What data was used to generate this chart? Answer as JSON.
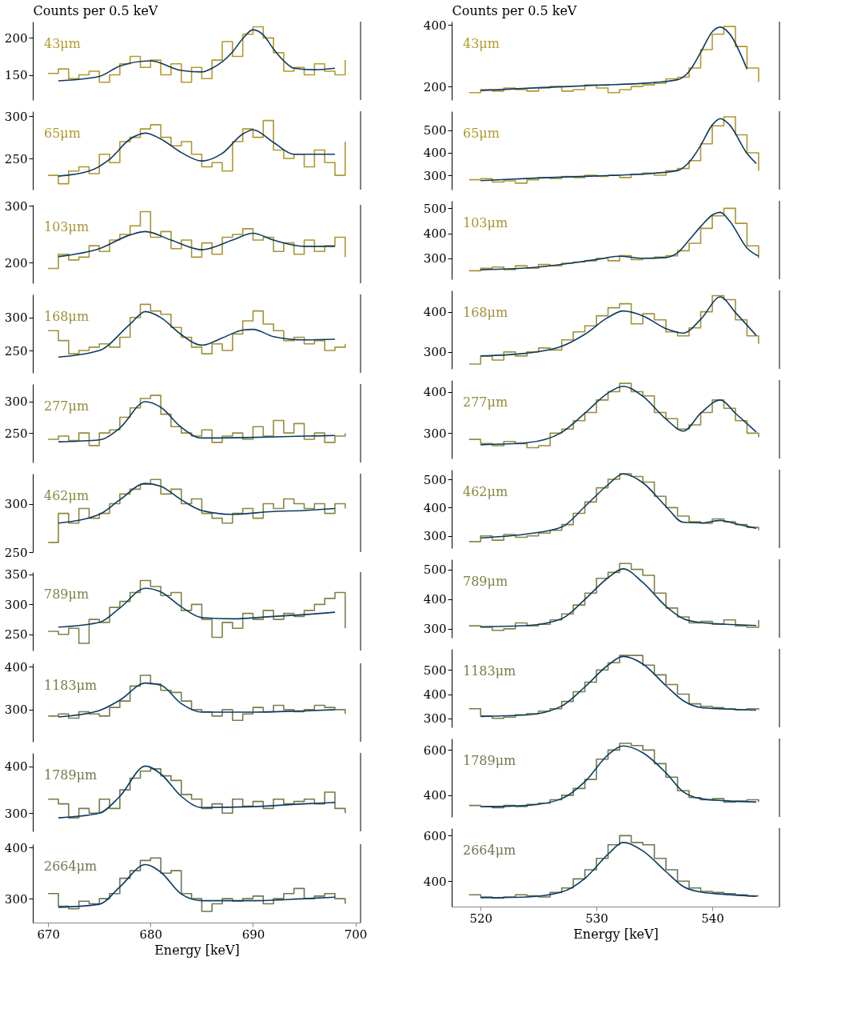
{
  "chart_data": [
    {
      "type": "step",
      "ylabel": "Counts per 0.5 keV",
      "annotations": [
        "43μm"
      ],
      "xlim": [
        668.5,
        700.5
      ],
      "ylim": [
        116,
        222
      ],
      "yticks": [
        150,
        200
      ],
      "tick_labels": "y",
      "x": [
        670,
        671,
        672,
        673,
        674,
        675,
        676,
        677,
        678,
        679,
        680,
        681,
        682,
        683,
        684,
        685,
        686,
        687,
        688,
        689,
        690,
        691,
        692,
        693,
        694,
        695,
        696,
        697,
        698,
        699
      ],
      "series": [
        {
          "color": "#b59a2c",
          "values": [
            152,
            158,
            145,
            150,
            155,
            140,
            150,
            165,
            175,
            160,
            170,
            150,
            165,
            140,
            160,
            145,
            170,
            195,
            175,
            205,
            215,
            200,
            180,
            155,
            160,
            150,
            165,
            155,
            150,
            170
          ]
        },
        {
          "type": "line",
          "color": "#0e3b63",
          "x": [
            671,
            675,
            677,
            680,
            683,
            685,
            686,
            688,
            689,
            690,
            691,
            692,
            693,
            694,
            696,
            698
          ],
          "values": [
            142,
            148,
            162,
            169,
            156,
            154,
            159,
            181,
            199,
            211,
            204,
            185,
            169,
            159,
            157,
            159
          ]
        }
      ]
    },
    {
      "type": "step",
      "annotations": [
        "65μm"
      ],
      "xlim": [
        668.5,
        700.5
      ],
      "ylim": [
        213,
        306
      ],
      "yticks": [
        250,
        300
      ],
      "tick_labels": "y",
      "x": [
        670,
        671,
        672,
        673,
        674,
        675,
        676,
        677,
        678,
        679,
        680,
        681,
        682,
        683,
        684,
        685,
        686,
        687,
        688,
        689,
        690,
        691,
        692,
        693,
        694,
        695,
        696,
        697,
        698,
        699
      ],
      "series": [
        {
          "color": "#b0982f",
          "values": [
            230,
            220,
            235,
            240,
            232,
            255,
            245,
            270,
            275,
            285,
            290,
            275,
            265,
            270,
            255,
            240,
            245,
            235,
            270,
            285,
            275,
            295,
            260,
            250,
            255,
            240,
            260,
            245,
            230,
            270
          ]
        },
        {
          "type": "line",
          "color": "#0e3b63",
          "x": [
            671,
            674,
            676,
            678,
            679.5,
            681,
            683,
            685,
            687,
            689,
            690,
            692,
            694,
            698
          ],
          "values": [
            229,
            235,
            249,
            273,
            280,
            273,
            257,
            247,
            256,
            279,
            284,
            269,
            255,
            255
          ]
        }
      ]
    },
    {
      "type": "step",
      "annotations": [
        "103μm"
      ],
      "xlim": [
        668.5,
        700.5
      ],
      "ylim": [
        164,
        302
      ],
      "yticks": [
        200,
        300
      ],
      "tick_labels": "y",
      "x": [
        670,
        671,
        672,
        673,
        674,
        675,
        676,
        677,
        678,
        679,
        680,
        681,
        682,
        683,
        684,
        685,
        686,
        687,
        688,
        689,
        690,
        691,
        692,
        693,
        694,
        695,
        696,
        697,
        698,
        699
      ],
      "series": [
        {
          "color": "#a89535",
          "values": [
            190,
            215,
            205,
            210,
            230,
            220,
            240,
            250,
            265,
            290,
            245,
            255,
            225,
            240,
            210,
            235,
            215,
            245,
            250,
            260,
            240,
            245,
            220,
            235,
            215,
            240,
            220,
            230,
            245,
            210
          ]
        },
        {
          "type": "line",
          "color": "#0e3b63",
          "x": [
            671,
            675,
            678,
            679.5,
            682,
            685,
            688,
            690,
            692,
            695,
            698
          ],
          "values": [
            211,
            225,
            249,
            255,
            240,
            223,
            240,
            252,
            240,
            229,
            229
          ]
        }
      ]
    },
    {
      "type": "step",
      "annotations": [
        "168μm"
      ],
      "xlim": [
        668.5,
        700.5
      ],
      "ylim": [
        216,
        335
      ],
      "yticks": [
        250,
        300
      ],
      "tick_labels": "y",
      "x": [
        670,
        671,
        672,
        673,
        674,
        675,
        676,
        677,
        678,
        679,
        680,
        681,
        682,
        683,
        684,
        685,
        686,
        687,
        688,
        689,
        690,
        691,
        692,
        693,
        694,
        695,
        696,
        697,
        698,
        699
      ],
      "series": [
        {
          "color": "#a0923a",
          "values": [
            280,
            265,
            245,
            250,
            255,
            260,
            255,
            270,
            300,
            320,
            310,
            305,
            285,
            270,
            255,
            245,
            260,
            250,
            275,
            295,
            310,
            290,
            280,
            265,
            270,
            260,
            265,
            250,
            255,
            260
          ]
        },
        {
          "type": "line",
          "color": "#0e3b63",
          "x": [
            671,
            675,
            678,
            679.5,
            681,
            683,
            685,
            687,
            689,
            690,
            692,
            695,
            698
          ],
          "values": [
            240,
            250,
            290,
            309,
            300,
            274,
            258,
            269,
            281,
            282,
            271,
            266,
            267
          ]
        }
      ]
    },
    {
      "type": "step",
      "annotations": [
        "277μm"
      ],
      "xlim": [
        668.5,
        700.5
      ],
      "ylim": [
        203,
        328
      ],
      "yticks": [
        250,
        300
      ],
      "tick_labels": "y",
      "x": [
        670,
        671,
        672,
        673,
        674,
        675,
        676,
        677,
        678,
        679,
        680,
        681,
        682,
        683,
        684,
        685,
        686,
        687,
        688,
        689,
        690,
        691,
        692,
        693,
        694,
        695,
        696,
        697,
        698,
        699
      ],
      "series": [
        {
          "color": "#958d3e",
          "values": [
            240,
            245,
            238,
            250,
            230,
            250,
            255,
            275,
            290,
            305,
            310,
            280,
            260,
            250,
            245,
            255,
            235,
            245,
            250,
            240,
            260,
            245,
            270,
            250,
            265,
            240,
            250,
            235,
            245,
            250
          ]
        },
        {
          "type": "line",
          "color": "#0e3b63",
          "x": [
            671,
            675,
            677,
            679.5,
            681,
            683,
            685,
            690,
            695,
            698
          ],
          "values": [
            236,
            239,
            258,
            300,
            291,
            259,
            242,
            243,
            245,
            246
          ]
        }
      ]
    },
    {
      "type": "step",
      "annotations": [
        "462μm"
      ],
      "xlim": [
        668.5,
        700.5
      ],
      "ylim": [
        250,
        331
      ],
      "yticks": [
        250,
        300
      ],
      "tick_labels": "y",
      "x": [
        670,
        671,
        672,
        673,
        674,
        675,
        676,
        677,
        678,
        679,
        680,
        681,
        682,
        683,
        684,
        685,
        686,
        687,
        688,
        689,
        690,
        691,
        692,
        693,
        694,
        695,
        696,
        697,
        698,
        699
      ],
      "series": [
        {
          "color": "#8a8842",
          "values": [
            260,
            290,
            280,
            295,
            285,
            290,
            300,
            310,
            315,
            320,
            325,
            310,
            315,
            300,
            305,
            290,
            285,
            280,
            290,
            295,
            285,
            300,
            295,
            305,
            300,
            295,
            300,
            290,
            300,
            295
          ]
        },
        {
          "type": "line",
          "color": "#0e3b63",
          "x": [
            671,
            675,
            677,
            679.5,
            681,
            683,
            685,
            688,
            692,
            695,
            698
          ],
          "values": [
            280,
            289,
            304,
            321,
            318,
            304,
            293,
            289,
            292,
            293,
            295
          ]
        }
      ]
    },
    {
      "type": "step",
      "annotations": [
        "789μm"
      ],
      "xlim": [
        668.5,
        700.5
      ],
      "ylim": [
        223,
        354
      ],
      "yticks": [
        250,
        300,
        350
      ],
      "tick_labels": "y",
      "x": [
        670,
        671,
        672,
        673,
        674,
        675,
        676,
        677,
        678,
        679,
        680,
        681,
        682,
        683,
        684,
        685,
        686,
        687,
        688,
        689,
        690,
        691,
        692,
        693,
        694,
        695,
        696,
        697,
        698,
        699
      ],
      "series": [
        {
          "color": "#7f8445",
          "values": [
            255,
            250,
            260,
            235,
            275,
            270,
            295,
            305,
            320,
            340,
            330,
            315,
            320,
            290,
            300,
            275,
            245,
            270,
            260,
            285,
            275,
            290,
            275,
            285,
            280,
            290,
            300,
            310,
            320,
            260
          ]
        },
        {
          "type": "line",
          "color": "#0e3b63",
          "x": [
            671,
            675,
            677,
            679.5,
            681,
            683,
            685,
            688,
            692,
            695,
            698
          ],
          "values": [
            262,
            270,
            294,
            327,
            321,
            296,
            278,
            276,
            280,
            283,
            287
          ]
        }
      ]
    },
    {
      "type": "step",
      "annotations": [
        "1183μm"
      ],
      "xlim": [
        668.5,
        700.5
      ],
      "ylim": [
        225,
        408
      ],
      "yticks": [
        300,
        400
      ],
      "tick_labels": "y",
      "x": [
        670,
        671,
        672,
        673,
        674,
        675,
        676,
        677,
        678,
        679,
        680,
        681,
        682,
        683,
        684,
        685,
        686,
        687,
        688,
        689,
        690,
        691,
        692,
        693,
        694,
        695,
        696,
        697,
        698,
        699
      ],
      "series": [
        {
          "color": "#767f49",
          "values": [
            285,
            290,
            280,
            295,
            290,
            285,
            305,
            320,
            355,
            380,
            360,
            345,
            340,
            320,
            300,
            295,
            285,
            300,
            275,
            290,
            305,
            295,
            310,
            300,
            295,
            300,
            310,
            305,
            300,
            290
          ]
        },
        {
          "type": "line",
          "color": "#0e3b63",
          "x": [
            671,
            675,
            677,
            679.5,
            681,
            683,
            685,
            690,
            695,
            698
          ],
          "values": [
            283,
            298,
            322,
            362,
            357,
            314,
            294,
            294,
            297,
            300
          ]
        }
      ]
    },
    {
      "type": "step",
      "annotations": [
        "1789μm"
      ],
      "xlim": [
        668.5,
        700.5
      ],
      "ylim": [
        261,
        429
      ],
      "yticks": [
        300,
        400
      ],
      "tick_labels": "y",
      "x": [
        670,
        671,
        672,
        673,
        674,
        675,
        676,
        677,
        678,
        679,
        680,
        681,
        682,
        683,
        684,
        685,
        686,
        687,
        688,
        689,
        690,
        691,
        692,
        693,
        694,
        695,
        696,
        697,
        698,
        699
      ],
      "series": [
        {
          "color": "#6f7c4c",
          "values": [
            330,
            320,
            290,
            310,
            300,
            330,
            310,
            350,
            375,
            390,
            395,
            380,
            370,
            340,
            330,
            310,
            320,
            300,
            330,
            315,
            325,
            310,
            330,
            320,
            325,
            330,
            320,
            345,
            310,
            300
          ]
        },
        {
          "type": "line",
          "color": "#0e3b63",
          "x": [
            671,
            675,
            677,
            679.5,
            681,
            683,
            685,
            690,
            695,
            698
          ],
          "values": [
            290,
            300,
            336,
            401,
            384,
            336,
            312,
            314,
            320,
            323
          ]
        }
      ]
    },
    {
      "type": "step",
      "xlabel": "Energy [keV]",
      "annotations": [
        "2664μm"
      ],
      "xlim": [
        668.5,
        700.5
      ],
      "xticks": [
        670,
        680,
        690,
        700
      ],
      "ylim": [
        253,
        407
      ],
      "yticks": [
        300,
        400
      ],
      "x": [
        670,
        671,
        672,
        673,
        674,
        675,
        676,
        677,
        678,
        679,
        680,
        681,
        682,
        683,
        684,
        685,
        686,
        687,
        688,
        689,
        690,
        691,
        692,
        693,
        694,
        695,
        696,
        697,
        698,
        699
      ],
      "series": [
        {
          "color": "#6a7a50",
          "values": [
            310,
            285,
            280,
            295,
            290,
            300,
            310,
            340,
            355,
            375,
            380,
            350,
            355,
            310,
            300,
            275,
            290,
            300,
            295,
            300,
            305,
            290,
            300,
            310,
            320,
            300,
            305,
            310,
            300,
            290
          ]
        },
        {
          "type": "line",
          "color": "#0e3b63",
          "x": [
            671,
            675,
            677,
            679.5,
            681,
            683,
            685,
            690,
            695,
            698
          ],
          "values": [
            283,
            289,
            323,
            367,
            352,
            309,
            296,
            296,
            300,
            303
          ]
        }
      ]
    },
    {
      "type": "step",
      "ylabel": "Counts per 0.5 keV",
      "annotations": [
        "43μm"
      ],
      "xlim": [
        517.5,
        545.8
      ],
      "ylim": [
        156,
        411
      ],
      "yticks": [
        200,
        400
      ],
      "tick_labels": "y",
      "x": [
        519,
        520,
        521,
        522,
        523,
        524,
        525,
        526,
        527,
        528,
        529,
        530,
        531,
        532,
        533,
        534,
        535,
        536,
        537,
        538,
        539,
        540,
        541,
        542,
        543,
        544
      ],
      "series": [
        {
          "color": "#b59a2c",
          "values": [
            180,
            190,
            185,
            195,
            190,
            185,
            195,
            200,
            185,
            190,
            205,
            195,
            180,
            190,
            200,
            205,
            210,
            225,
            230,
            260,
            320,
            370,
            395,
            330,
            260,
            215
          ]
        },
        {
          "type": "line",
          "color": "#0e3b63",
          "x": [
            520,
            525,
            530,
            535,
            537,
            538,
            539,
            540,
            540.7,
            541.5,
            543
          ],
          "values": [
            187,
            196,
            204,
            213,
            222,
            249,
            311,
            378,
            393,
            371,
            256
          ]
        }
      ]
    },
    {
      "type": "step",
      "annotations": [
        "65μm"
      ],
      "xlim": [
        517.5,
        545.8
      ],
      "ylim": [
        236,
        585
      ],
      "yticks": [
        300,
        400,
        500
      ],
      "tick_labels": "y",
      "x": [
        519,
        520,
        521,
        522,
        523,
        524,
        525,
        526,
        527,
        528,
        529,
        530,
        531,
        532,
        533,
        534,
        535,
        536,
        537,
        538,
        539,
        540,
        541,
        542,
        543,
        544
      ],
      "series": [
        {
          "color": "#b0982f",
          "values": [
            280,
            285,
            270,
            275,
            265,
            280,
            290,
            285,
            295,
            290,
            300,
            295,
            300,
            290,
            305,
            310,
            300,
            320,
            330,
            365,
            440,
            520,
            560,
            480,
            400,
            320
          ]
        },
        {
          "type": "line",
          "color": "#0e3b63",
          "x": [
            520,
            525,
            530,
            535,
            537,
            538,
            539,
            540,
            540.7,
            541.5,
            543,
            543.8
          ],
          "values": [
            276,
            288,
            297,
            309,
            321,
            358,
            433,
            524,
            552,
            524,
            397,
            352
          ]
        }
      ]
    },
    {
      "type": "step",
      "annotations": [
        "103μm"
      ],
      "xlim": [
        517.5,
        545.8
      ],
      "ylim": [
        216,
        530
      ],
      "yticks": [
        300,
        400,
        500
      ],
      "tick_labels": "y",
      "x": [
        519,
        520,
        521,
        522,
        523,
        524,
        525,
        526,
        527,
        528,
        529,
        530,
        531,
        532,
        533,
        534,
        535,
        536,
        537,
        538,
        539,
        540,
        541,
        542,
        543,
        544
      ],
      "series": [
        {
          "color": "#a89535",
          "values": [
            250,
            260,
            265,
            255,
            270,
            260,
            275,
            270,
            280,
            285,
            290,
            300,
            290,
            310,
            295,
            300,
            305,
            310,
            330,
            360,
            420,
            470,
            500,
            440,
            350,
            300
          ]
        },
        {
          "type": "line",
          "color": "#0e3b63",
          "x": [
            520,
            525,
            530,
            532,
            534,
            536,
            537,
            538,
            539,
            540,
            540.7,
            541.5,
            543,
            544
          ],
          "values": [
            254,
            265,
            295,
            308,
            300,
            303,
            322,
            373,
            427,
            473,
            484,
            449,
            341,
            308
          ]
        }
      ]
    },
    {
      "type": "step",
      "annotations": [
        "168μm"
      ],
      "xlim": [
        517.5,
        545.8
      ],
      "ylim": [
        258,
        453
      ],
      "yticks": [
        300,
        400
      ],
      "tick_labels": "y",
      "x": [
        519,
        520,
        521,
        522,
        523,
        524,
        525,
        526,
        527,
        528,
        529,
        530,
        531,
        532,
        533,
        534,
        535,
        536,
        537,
        538,
        539,
        540,
        541,
        542,
        543,
        544
      ],
      "series": [
        {
          "color": "#a0923a",
          "values": [
            270,
            290,
            280,
            300,
            290,
            300,
            310,
            305,
            330,
            350,
            365,
            390,
            410,
            420,
            370,
            395,
            380,
            350,
            340,
            360,
            400,
            440,
            430,
            380,
            340,
            320
          ]
        },
        {
          "type": "line",
          "color": "#0e3b63",
          "x": [
            520,
            524,
            527,
            529,
            531,
            532.3,
            534,
            536,
            537.5,
            539,
            540.7,
            542,
            543.8
          ],
          "values": [
            290,
            297,
            314,
            344,
            386,
            402,
            390,
            358,
            347,
            381,
            437,
            398,
            341
          ]
        }
      ]
    },
    {
      "type": "step",
      "annotations": [
        "277μm"
      ],
      "xlim": [
        517.5,
        545.8
      ],
      "ylim": [
        239,
        428
      ],
      "yticks": [
        300,
        400
      ],
      "tick_labels": "y",
      "x": [
        519,
        520,
        521,
        522,
        523,
        524,
        525,
        526,
        527,
        528,
        529,
        530,
        531,
        532,
        533,
        534,
        535,
        536,
        537,
        538,
        539,
        540,
        541,
        542,
        543,
        544
      ],
      "series": [
        {
          "color": "#958d3e",
          "values": [
            285,
            275,
            270,
            280,
            275,
            265,
            270,
            300,
            310,
            330,
            350,
            380,
            400,
            420,
            400,
            390,
            350,
            335,
            310,
            320,
            350,
            380,
            360,
            330,
            300,
            290
          ]
        },
        {
          "type": "line",
          "color": "#0e3b63",
          "x": [
            520,
            524,
            527,
            529,
            531,
            532.3,
            534,
            536,
            537.5,
            539,
            540.7,
            542,
            543.8
          ],
          "values": [
            272,
            277,
            302,
            348,
            397,
            413,
            389,
            334,
            305,
            348,
            380,
            348,
            303
          ]
        }
      ]
    },
    {
      "type": "step",
      "annotations": [
        "462μm"
      ],
      "xlim": [
        517.5,
        545.8
      ],
      "ylim": [
        257,
        534
      ],
      "yticks": [
        300,
        400,
        500
      ],
      "tick_labels": "y",
      "x": [
        519,
        520,
        521,
        522,
        523,
        524,
        525,
        526,
        527,
        528,
        529,
        530,
        531,
        532,
        533,
        534,
        535,
        536,
        537,
        538,
        539,
        540,
        541,
        542,
        543,
        544
      ],
      "series": [
        {
          "color": "#8a8842",
          "values": [
            280,
            300,
            285,
            305,
            295,
            300,
            310,
            320,
            340,
            380,
            420,
            470,
            500,
            520,
            510,
            490,
            440,
            400,
            370,
            350,
            345,
            360,
            350,
            340,
            330,
            320
          ]
        },
        {
          "type": "line",
          "color": "#0e3b63",
          "x": [
            520,
            524,
            527,
            529,
            531,
            532.3,
            534,
            536,
            537.5,
            539,
            540.7,
            542,
            543.8
          ],
          "values": [
            293,
            307,
            331,
            404,
            481,
            519,
            488,
            404,
            348,
            346,
            355,
            343,
            327
          ]
        }
      ]
    },
    {
      "type": "step",
      "annotations": [
        "789μm"
      ],
      "xlim": [
        517.5,
        545.8
      ],
      "ylim": [
        270,
        534
      ],
      "yticks": [
        300,
        400,
        500
      ],
      "tick_labels": "y",
      "x": [
        519,
        520,
        521,
        522,
        523,
        524,
        525,
        526,
        527,
        528,
        529,
        530,
        531,
        532,
        533,
        534,
        535,
        536,
        537,
        538,
        539,
        540,
        541,
        542,
        543,
        544
      ],
      "series": [
        {
          "color": "#7f8445",
          "values": [
            310,
            305,
            295,
            300,
            320,
            310,
            315,
            330,
            350,
            380,
            420,
            470,
            490,
            520,
            500,
            480,
            420,
            370,
            340,
            320,
            325,
            315,
            330,
            310,
            305,
            330
          ]
        },
        {
          "type": "line",
          "color": "#0e3b63",
          "x": [
            520,
            524,
            527,
            529,
            531,
            532.3,
            534,
            536,
            537.5,
            539,
            541,
            543.8
          ],
          "values": [
            307,
            311,
            334,
            399,
            472,
            502,
            456,
            376,
            334,
            321,
            316,
            311
          ]
        }
      ]
    },
    {
      "type": "step",
      "annotations": [
        "1183μm"
      ],
      "xlim": [
        517.5,
        545.8
      ],
      "ylim": [
        263,
        587
      ],
      "yticks": [
        300,
        400,
        500
      ],
      "tick_labels": "y",
      "x": [
        519,
        520,
        521,
        522,
        523,
        524,
        525,
        526,
        527,
        528,
        529,
        530,
        531,
        532,
        533,
        534,
        535,
        536,
        537,
        538,
        539,
        540,
        541,
        542,
        543,
        544
      ],
      "series": [
        {
          "color": "#767f49",
          "values": [
            340,
            310,
            300,
            305,
            315,
            320,
            330,
            340,
            370,
            410,
            450,
            500,
            530,
            560,
            560,
            520,
            480,
            440,
            400,
            360,
            350,
            345,
            340,
            335,
            340,
            335
          ]
        },
        {
          "type": "line",
          "color": "#0e3b63",
          "x": [
            520,
            524,
            527,
            529,
            531,
            532.3,
            534,
            536,
            537.5,
            539,
            541,
            543.8
          ],
          "values": [
            308,
            314,
            351,
            430,
            520,
            556,
            525,
            435,
            373,
            345,
            339,
            334
          ]
        }
      ]
    },
    {
      "type": "step",
      "annotations": [
        "1789μm"
      ],
      "xlim": [
        517.5,
        545.8
      ],
      "ylim": [
        304,
        651
      ],
      "yticks": [
        400,
        600
      ],
      "tick_labels": "y",
      "x": [
        519,
        520,
        521,
        522,
        523,
        524,
        525,
        526,
        527,
        528,
        529,
        530,
        531,
        532,
        533,
        534,
        535,
        536,
        537,
        538,
        539,
        540,
        541,
        542,
        543,
        544
      ],
      "series": [
        {
          "color": "#6f7c4c",
          "values": [
            355,
            350,
            345,
            355,
            350,
            360,
            365,
            380,
            400,
            430,
            470,
            560,
            600,
            630,
            620,
            600,
            540,
            480,
            420,
            390,
            380,
            385,
            370,
            375,
            380,
            370
          ]
        },
        {
          "type": "line",
          "color": "#0e3b63",
          "x": [
            520,
            524,
            527,
            529,
            531,
            532.3,
            534,
            536,
            537.5,
            539,
            541,
            543.8
          ],
          "values": [
            349,
            355,
            385,
            460,
            579,
            618,
            588,
            499,
            415,
            385,
            376,
            370
          ]
        }
      ]
    },
    {
      "type": "step",
      "xlabel": "Energy [keV]",
      "annotations": [
        "2664μm"
      ],
      "xlim": [
        517.5,
        545.8
      ],
      "xticks": [
        520,
        530,
        540
      ],
      "ylim": [
        288,
        633
      ],
      "yticks": [
        400,
        600
      ],
      "x": [
        519,
        520,
        521,
        522,
        523,
        524,
        525,
        526,
        527,
        528,
        529,
        530,
        531,
        532,
        533,
        534,
        535,
        536,
        537,
        538,
        539,
        540,
        541,
        542,
        543,
        544
      ],
      "series": [
        {
          "color": "#6a7a50",
          "values": [
            340,
            330,
            325,
            330,
            340,
            335,
            330,
            350,
            370,
            410,
            450,
            500,
            560,
            600,
            570,
            560,
            500,
            450,
            400,
            370,
            355,
            350,
            345,
            340,
            335,
            335
          ]
        },
        {
          "type": "line",
          "color": "#0e3b63",
          "x": [
            520,
            524,
            527,
            529,
            531,
            532.3,
            534,
            536,
            537.5,
            539,
            541,
            543.8
          ],
          "values": [
            327,
            330,
            352,
            412,
            518,
            570,
            533,
            442,
            376,
            352,
            342,
            333
          ]
        }
      ]
    }
  ]
}
